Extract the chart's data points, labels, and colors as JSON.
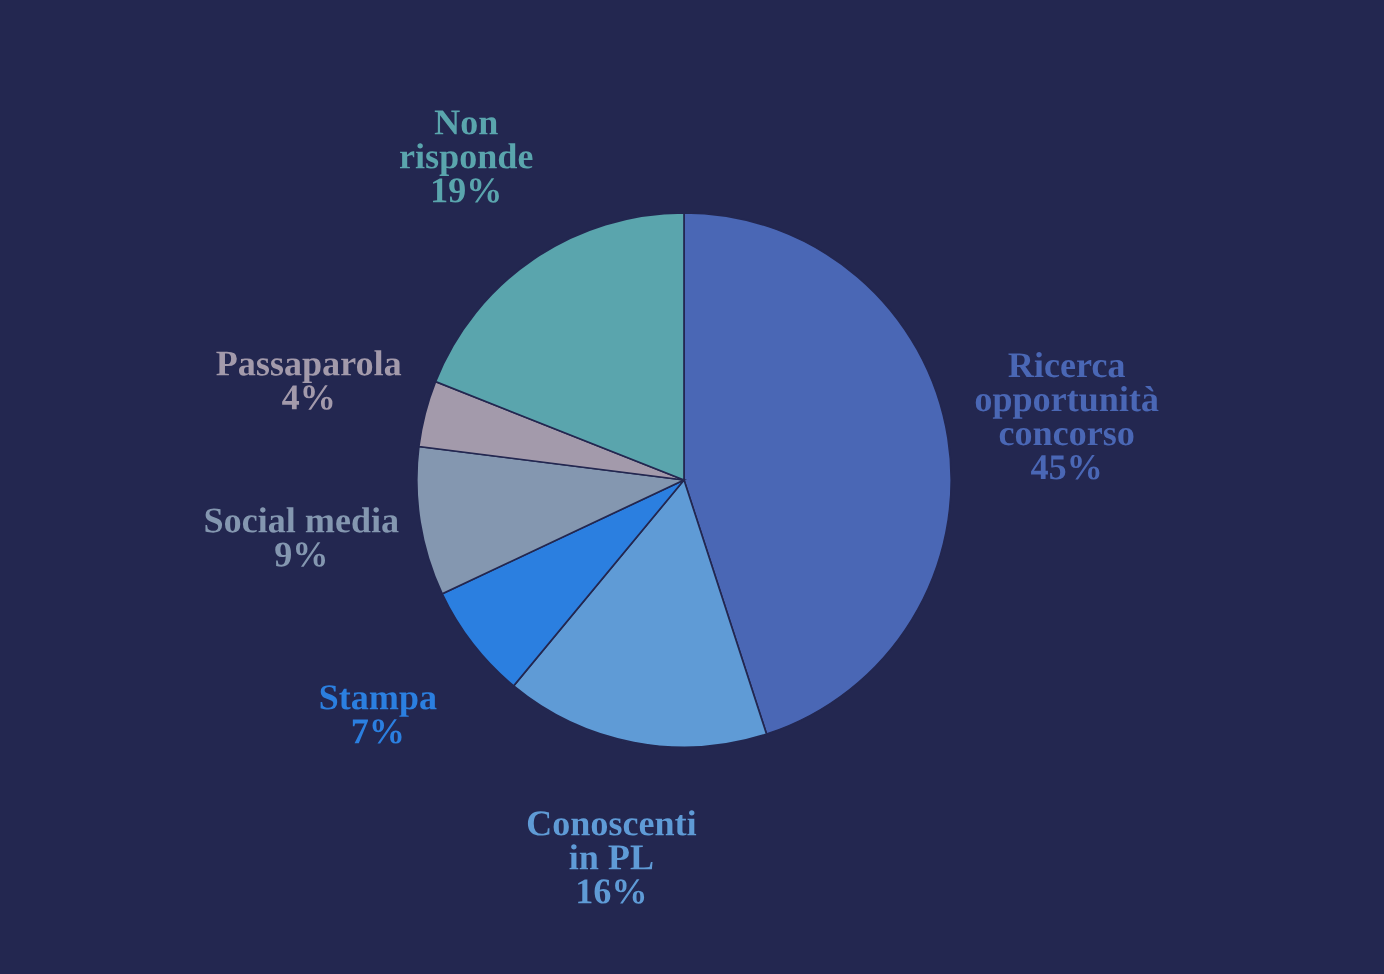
{
  "chart_data": {
    "type": "pie",
    "categories": [
      "Ricerca opportunità concorso",
      "Conoscenti in PL",
      "Stampa",
      "Social media",
      "Passaparola",
      "Non risponde"
    ],
    "values": [
      45,
      16,
      7,
      9,
      4,
      19
    ],
    "colors": [
      "#4a67b5",
      "#5f9bd6",
      "#2b7fe0",
      "#8497b0",
      "#a39aab",
      "#5aa5ad"
    ],
    "value_labels": [
      "45%",
      "16%",
      "7%",
      "9%",
      "4%",
      "19%"
    ]
  }
}
